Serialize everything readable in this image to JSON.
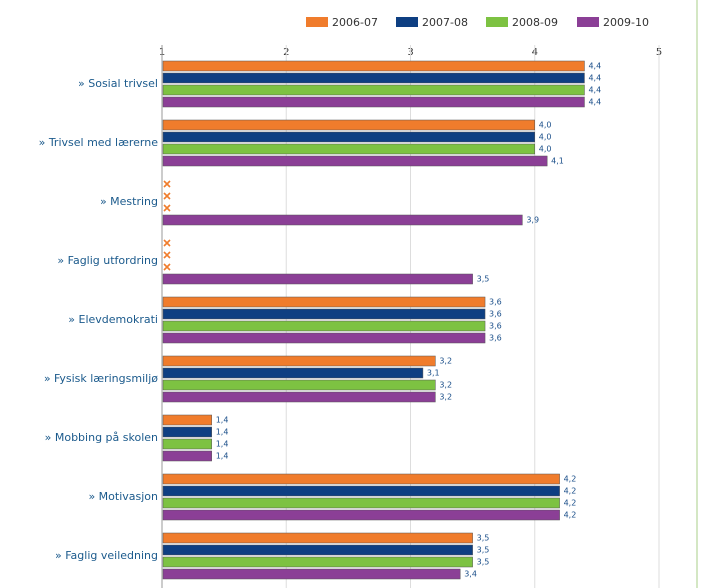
{
  "chart_data": {
    "type": "hbar",
    "categories": [
      "» Sosial trivsel",
      "» Trivsel med lærerne",
      "» Mestring",
      "» Faglig utfordring",
      "» Elevdemokrati",
      "» Fysisk læringsmiljø",
      "» Mobbing på skolen",
      "» Motivasjon",
      "» Faglig veiledning"
    ],
    "series": [
      {
        "name": "2006-07",
        "color": "#f07c2c",
        "values": [
          4.4,
          4.0,
          null,
          null,
          3.6,
          3.2,
          1.4,
          4.2,
          3.5
        ],
        "value_labels": [
          "4,4",
          "4,0",
          null,
          null,
          "3,6",
          "3,2",
          "1,4",
          "4,2",
          "3,5"
        ]
      },
      {
        "name": "2007-08",
        "color": "#0e3f82",
        "values": [
          4.4,
          4.0,
          null,
          null,
          3.6,
          3.1,
          1.4,
          4.2,
          3.5
        ],
        "value_labels": [
          "4,4",
          "4,0",
          null,
          null,
          "3,6",
          "3,1",
          "1,4",
          "4,2",
          "3,5"
        ]
      },
      {
        "name": "2008-09",
        "color": "#7dc242",
        "values": [
          4.4,
          4.0,
          null,
          null,
          3.6,
          3.2,
          1.4,
          4.2,
          3.5
        ],
        "value_labels": [
          "4,4",
          "4,0",
          null,
          null,
          "3,6",
          "3,2",
          "1,4",
          "4,2",
          "3,5"
        ]
      },
      {
        "name": "2009-10",
        "color": "#8b3f96",
        "values": [
          4.4,
          4.1,
          3.9,
          3.5,
          3.6,
          3.2,
          1.4,
          4.2,
          3.4
        ],
        "value_labels": [
          "4,4",
          "4,1",
          "3,9",
          "3,5",
          "3,6",
          "3,2",
          "1,4",
          "4,2",
          "3,4"
        ]
      }
    ],
    "xlim": [
      1,
      5
    ],
    "xticks": [
      1,
      2,
      3,
      4,
      5
    ],
    "grid": true
  }
}
